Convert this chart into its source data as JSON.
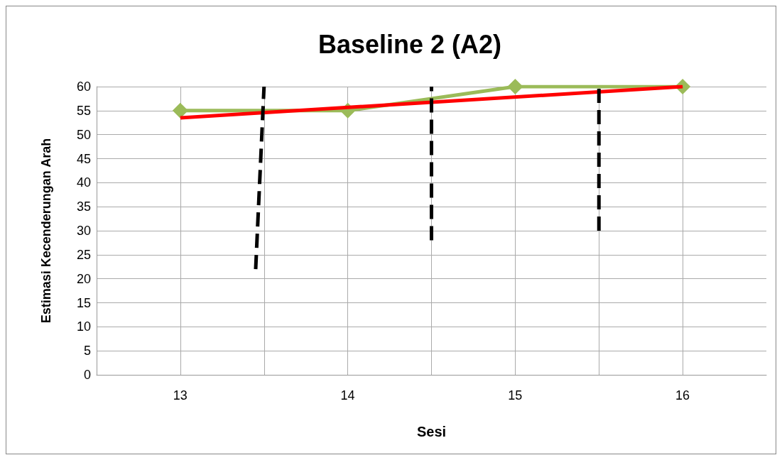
{
  "chart_data": {
    "type": "line",
    "title": "Baseline 2 (A2)",
    "xlabel": "Sesi",
    "ylabel": "Estimasi Kecenderungan Arah",
    "xlim": [
      12.5,
      16.5
    ],
    "xticks": [
      {
        "value": 13,
        "label": "13"
      },
      {
        "value": 13.5,
        "label": null
      },
      {
        "value": 14,
        "label": "14"
      },
      {
        "value": 14.5,
        "label": null
      },
      {
        "value": 15,
        "label": "15"
      },
      {
        "value": 15.5,
        "label": null
      },
      {
        "value": 16,
        "label": "16"
      }
    ],
    "ylim": [
      0,
      60
    ],
    "yticks": [
      0,
      5,
      10,
      15,
      20,
      25,
      30,
      35,
      40,
      45,
      50,
      55,
      60
    ],
    "grid": true,
    "series": [
      {
        "x": [
          13,
          14,
          15,
          16
        ],
        "values": [
          55,
          55,
          60,
          60
        ],
        "color": "#9bbb59",
        "marker": "diamond",
        "line_style": "solid"
      },
      {
        "x": [
          13,
          16
        ],
        "values": [
          53.5,
          60
        ],
        "color": "#ff0000",
        "marker": "none",
        "line_style": "solid"
      },
      {
        "x": [
          13.45,
          13.5
        ],
        "values": [
          22,
          60
        ],
        "color": "#000000",
        "marker": "none",
        "line_style": "dashed"
      },
      {
        "x": [
          14.5,
          14.5
        ],
        "values": [
          28,
          60
        ],
        "color": "#000000",
        "marker": "none",
        "line_style": "dashed"
      },
      {
        "x": [
          15.5,
          15.5
        ],
        "values": [
          30,
          60
        ],
        "color": "#000000",
        "marker": "none",
        "line_style": "dashed"
      }
    ]
  }
}
